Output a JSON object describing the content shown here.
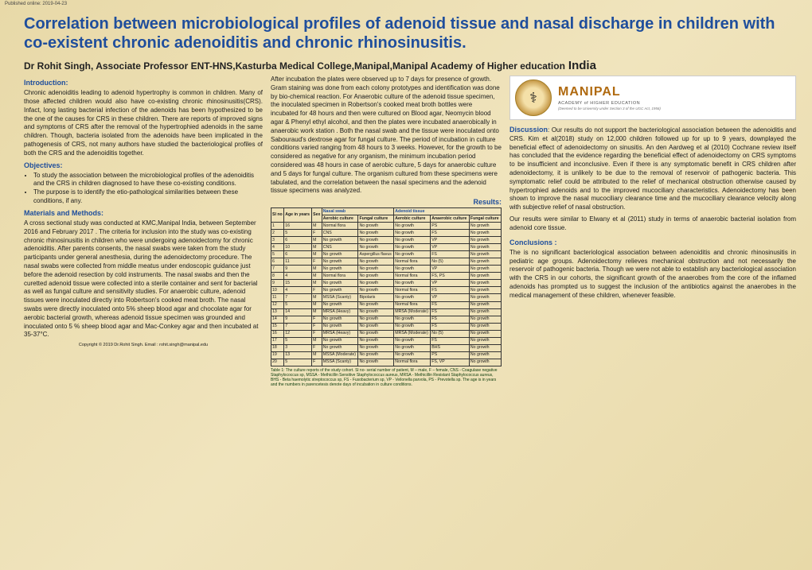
{
  "meta": {
    "published": "Published online: 2019-04-23"
  },
  "title": "Correlation between microbiological profiles of adenoid tissue and nasal discharge in children with co-existent chronic adenoiditis and chronic rhinosinusitis.",
  "author_line": "Dr Rohit Singh, Associate Professor ENT-HNS,Kasturba Medical College,Manipal,Manipal Academy of Higher education",
  "country": "India",
  "logo": {
    "main": "MANIPAL",
    "sub": "ACADEMY of HIGHER EDUCATION",
    "deemed": "(Deemed to be University under Section 3 of the UGC Act, 1956)"
  },
  "headings": {
    "intro": "Introduction:",
    "objectives": "Objectives:",
    "methods": "Materials and Methods:",
    "results": "Results:",
    "discussion": "Discussion",
    "conclusions": "Conclusions :"
  },
  "intro": "Chronic adenoiditis leading to adenoid hypertrophy is common in children. Many of those affected children would also have co-existing chronic rhinosinusitis(CRS). Infact, long lasting bacterial infection of the adenoids has been hypothesized to be the one of the causes for CRS in these children. There are reports of improved signs and symptoms of CRS after the removal of the hypertrophied adenoids in the same children. Though, bacteria isolated from the adenoids have been implicated in the pathogenesis of CRS, not many authors have studied the bacteriological profiles of both the CRS and the adenoiditis together.",
  "objectives": [
    "To study the association between the microbiological profiles of the adenoiditis and the CRS in children diagnosed to have these co-existing conditions.",
    "The purpose is to identify the etio-pathological similarities between these conditions, if any."
  ],
  "methods": "A cross sectional study was conducted at KMC,Manipal India, between September 2016 and February 2017 . The criteria for inclusion into the study was co-existing chronic rhinosinusitis in children who were undergoing adenoidectomy for chronic adenoiditis. After parents consents, the nasal swabs were taken from the study participants under general anesthesia, during the adenoidectomy procedure. The nasal swabs were collected from middle meatus under endoscopic guidance just before the adenoid resection by cold instruments. The nasal swabs and then the curetted adenoid tissue were collected into a sterile container and sent for bacterial as well as fungal culture and sensitivity studies. For anaerobic culture, adenoid tissues were inoculated directly into Robertson's cooked meat broth. The nasal swabs were directly inoculated onto 5% sheep blood agar and chocolate agar for aerobic bacterial growth, whereas adenoid tissue specimen was grounded and inoculated onto 5 % sheep blood agar and Mac-Conkey agar and then incubated at 35-37°C.",
  "methods2": "After incubation the plates were observed up to 7 days for presence of growth. Gram staining was done from each colony prototypes and identification was done by bio-chemical reaction. For Anaerobic culture of the adenoid tissue specimen, the inoculated specimen in Robertson's cooked meat broth bottles were incubated for 48 hours and then were cultured on Blood agar, Neomycin blood agar & Phenyl ethyl alcohol, and then the plates were incubated anaerobically in anaerobic work station . Both the nasal swab and the tissue were inoculated onto Sabouraud's dextrose agar for fungal culture. The period of incubation in culture conditions varied ranging from 48 hours to 3 weeks. However, for the growth to be considered as negative for any organism, the minimum incubation period considered was 48 hours in case of aerobic culture, 5 days for anaerobic culture and 5 days for fungal culture. The organism cultured from these specimens were tabulated, and the correlation between the nasal specimens and the adenoid tissue specimens was analyzed.",
  "table": {
    "group1": "Nasal swab",
    "group2": "Adenoid tissue",
    "headers": [
      "Sl no",
      "Age in years",
      "Sex",
      "Aerobic culture",
      "Fungal culture",
      "Aerobic culture",
      "Anaerobic culture",
      "Fungal culture"
    ],
    "rows": [
      [
        "1",
        "16",
        "M",
        "Normal flora",
        "No growth",
        "No growth",
        "PS",
        "No growth"
      ],
      [
        "2",
        "5",
        "F",
        "CNS",
        "No growth",
        "No growth",
        "FS",
        "No growth"
      ],
      [
        "3",
        "6",
        "M",
        "No growth",
        "No growth",
        "No growth",
        "VP",
        "No growth"
      ],
      [
        "4",
        "10",
        "M",
        "CNS",
        "No growth",
        "No growth",
        "VP",
        "No growth"
      ],
      [
        "5",
        "6",
        "M",
        "No growth",
        "Aspergillus flavus",
        "No growth",
        "FS",
        "No growth"
      ],
      [
        "6",
        "11",
        "F",
        "No growth",
        "No growth",
        "Normal flora",
        "No (5)",
        "No growth"
      ],
      [
        "7",
        "9",
        "M",
        "No growth",
        "No growth",
        "No growth",
        "VP",
        "No growth"
      ],
      [
        "8",
        "4",
        "M",
        "Normal flora",
        "No growth",
        "Normal flora",
        "FS, PS",
        "No growth"
      ],
      [
        "9",
        "15",
        "M",
        "No growth",
        "No growth",
        "No growth",
        "VP",
        "No growth"
      ],
      [
        "10",
        "4",
        "F",
        "No growth",
        "No growth",
        "Normal flora",
        "FS",
        "No growth"
      ],
      [
        "11",
        "7",
        "M",
        "MSSA (Scanty)",
        "Bipolaris",
        "No growth",
        "VP",
        "No growth"
      ],
      [
        "12",
        "5",
        "M",
        "No growth",
        "No growth",
        "Normal flora",
        "FS",
        "No growth"
      ],
      [
        "13",
        "14",
        "M",
        "MRSA (Heavy)",
        "No growth",
        "MRSA (Moderate)",
        "FS",
        "No growth"
      ],
      [
        "14",
        "9",
        "F",
        "No growth",
        "No growth",
        "No growth",
        "FS",
        "No growth"
      ],
      [
        "15",
        "7",
        "F",
        "No growth",
        "No growth",
        "No growth",
        "FS",
        "No growth"
      ],
      [
        "16",
        "12",
        "F",
        "MRSA (Heavy)",
        "No growth",
        "MRSA (Moderate)",
        "No (5)",
        "No growth"
      ],
      [
        "17",
        "5",
        "M",
        "No growth",
        "No growth",
        "No growth",
        "FS",
        "No growth"
      ],
      [
        "18",
        "3",
        "F",
        "No growth",
        "No growth",
        "No growth",
        "BHS",
        "No growth"
      ],
      [
        "19",
        "13",
        "M",
        "MSSA (Moderate)",
        "No growth",
        "No growth",
        "PS",
        "No growth"
      ],
      [
        "20",
        "5",
        "F",
        "MSSA (Scanty)",
        "No growth",
        "Normal flora",
        "FS, VP",
        "No growth"
      ]
    ]
  },
  "caption": "Table 1: The culture reports of the study cohort. Sl no- serial number of patient, M – male, F – female, CNS - Coagulase negative Staphylococcus sp, MSSA - Methicillin Sensitive Staphylococcus aureus, MRSA - Methicillin Resistant Staphylococcus aureus, BHS - Beta haemolytic streptococcus sp, FS - Fusobacterium sp, VP - Veilonella parvola, PS - Prevotella sp. The age is in years and the numbers in parencetesis denote days of incubation in culture conditions.",
  "copyright": "Copyright © 2019  Dr.Rohit Singh. Email : rohit.singh@manipal.edu",
  "discussion": ": Our results do not support the bacteriological association between the adenoiditis and CRS. Kim et al(2018) study on 12,000 children followed up for up to 9 years, downplayed the beneficial effect of adenoidectomy on sinusitis. An den Aardweg et al (2010) Cochrane review itself has concluded that the evidence regarding the beneficial effect of adenoidectomy on CRS symptoms to be insufficient and inconclusive. Even if there is any symptomatic benefit in CRS children after adenoidectomy, it is unlikely to be due to the removal of reservoir of pathogenic bacteria. This symptomatic relief could be attributed to the relief of mechanical obstruction otherwise caused by hypertrophied adenoids and to the improved mucociliary characteristics. Adenoidectomy has been shown to improve the nasal mucociliary clearance time and the mucociliary clearance velocity along with subjective relief of nasal obstruction.",
  "discussion2": "Our results were similar to Elwany et al (2011) study in terms of anaerobic bacterial isolation from adenoid core tissue.",
  "conclusions": "The is no significant bacteriological association between adenoiditis and chronic rhinosinusitis in pediatric age groups. Adenoidectomy relieves mechanical obstruction and not necessarily the reservoir of pathogenic bacteria. Though we were not able to establish any bacteriological association with the CRS in our cohorts, the significant growth of the anaerobes from the core of the inflamed adenoids has prompted us to suggest the inclusion of the antibiotics against the anaerobes in the medical management of these children, whenever feasible."
}
